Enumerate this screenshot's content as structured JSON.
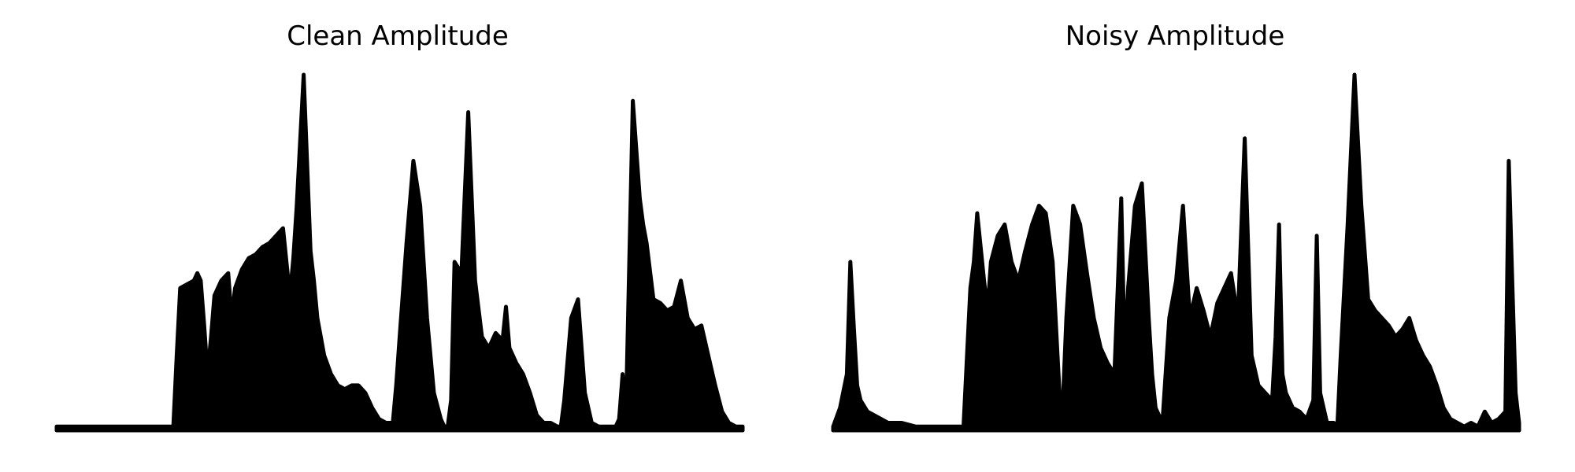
{
  "figure": {
    "background": "#ffffff",
    "line_color": "#000000"
  },
  "chart_data": [
    {
      "type": "area",
      "title": "Clean Amplitude",
      "xlabel": "",
      "ylabel": "",
      "axes_visible": false,
      "grid": false,
      "color": "#000000",
      "x": [
        0,
        5,
        10,
        15,
        17,
        17.5,
        18,
        19,
        20,
        20.5,
        21,
        21.5,
        22,
        22.5,
        23,
        24,
        25,
        25.5,
        26,
        27,
        28,
        29,
        30,
        31,
        32,
        33,
        34,
        34.5,
        35,
        36,
        37,
        37.5,
        38,
        39,
        40,
        41,
        42,
        43,
        44,
        45,
        46,
        47,
        48,
        49,
        49.5,
        50,
        51,
        52,
        53,
        54,
        55,
        56,
        56.5,
        57,
        57.5,
        58,
        59,
        60,
        61,
        62,
        63,
        64,
        65,
        65.5,
        66,
        67,
        68,
        69,
        70,
        71,
        72,
        73,
        73.5,
        74,
        75,
        76,
        77,
        78,
        79,
        80,
        81,
        81.5,
        82,
        82.5,
        83,
        84,
        85,
        85.5,
        86,
        87,
        88,
        89,
        90,
        91,
        92,
        93,
        94,
        95,
        96,
        97,
        98,
        99,
        100
      ],
      "values": [
        0.01,
        0.01,
        0.01,
        0.01,
        0.01,
        0.2,
        0.38,
        0.39,
        0.4,
        0.42,
        0.4,
        0.28,
        0.15,
        0.25,
        0.36,
        0.4,
        0.42,
        0.3,
        0.38,
        0.43,
        0.46,
        0.47,
        0.49,
        0.5,
        0.52,
        0.54,
        0.36,
        0.46,
        0.6,
        0.95,
        0.48,
        0.4,
        0.3,
        0.2,
        0.15,
        0.12,
        0.11,
        0.12,
        0.12,
        0.1,
        0.06,
        0.03,
        0.02,
        0.02,
        0.12,
        0.25,
        0.5,
        0.72,
        0.6,
        0.3,
        0.1,
        0.03,
        0.01,
        0.01,
        0.08,
        0.45,
        0.42,
        0.85,
        0.4,
        0.25,
        0.22,
        0.26,
        0.24,
        0.33,
        0.22,
        0.18,
        0.15,
        0.1,
        0.04,
        0.02,
        0.02,
        0.01,
        0.01,
        0.08,
        0.3,
        0.35,
        0.1,
        0.02,
        0.01,
        0.01,
        0.01,
        0.01,
        0.03,
        0.15,
        0.05,
        0.88,
        0.62,
        0.55,
        0.5,
        0.35,
        0.34,
        0.32,
        0.33,
        0.4,
        0.3,
        0.27,
        0.28,
        0.2,
        0.12,
        0.05,
        0.02,
        0.01,
        0.01
      ]
    },
    {
      "type": "area",
      "title": "Noisy Amplitude",
      "xlabel": "",
      "ylabel": "",
      "axes_visible": false,
      "grid": false,
      "color": "#000000",
      "x": [
        0,
        1,
        2,
        2.5,
        3,
        3.5,
        4,
        5,
        6,
        7,
        8,
        10,
        12,
        14,
        17,
        19,
        20,
        20.5,
        21,
        22,
        22.5,
        23,
        24,
        25,
        26,
        27,
        28,
        29,
        30,
        31,
        32,
        33,
        33.5,
        34,
        35,
        36,
        37,
        38,
        39,
        40,
        41,
        42,
        42.5,
        43,
        44,
        45,
        46,
        46.5,
        47,
        48,
        49,
        50,
        51,
        52,
        53,
        54,
        55,
        56,
        57,
        58,
        59,
        60,
        61,
        62,
        63,
        64,
        64.5,
        65,
        65.5,
        66,
        67,
        68,
        69,
        70,
        70.5,
        71,
        72,
        73,
        73.5,
        74,
        75,
        76,
        77,
        78,
        79,
        80,
        81,
        82,
        83,
        84,
        85,
        86,
        87,
        88,
        89,
        90,
        91,
        92,
        93,
        94,
        95,
        96,
        97,
        98,
        98.5,
        99,
        99.5,
        100
      ],
      "values": [
        0.01,
        0.06,
        0.15,
        0.45,
        0.28,
        0.12,
        0.08,
        0.05,
        0.04,
        0.03,
        0.02,
        0.02,
        0.01,
        0.01,
        0.01,
        0.01,
        0.38,
        0.45,
        0.58,
        0.4,
        0.32,
        0.45,
        0.52,
        0.55,
        0.45,
        0.4,
        0.48,
        0.55,
        0.6,
        0.58,
        0.45,
        0.1,
        0.08,
        0.3,
        0.6,
        0.55,
        0.42,
        0.3,
        0.22,
        0.18,
        0.15,
        0.62,
        0.2,
        0.38,
        0.6,
        0.66,
        0.3,
        0.15,
        0.06,
        0.02,
        0.3,
        0.4,
        0.6,
        0.3,
        0.38,
        0.32,
        0.25,
        0.34,
        0.38,
        0.42,
        0.3,
        0.78,
        0.2,
        0.12,
        0.1,
        0.08,
        0.25,
        0.55,
        0.15,
        0.1,
        0.06,
        0.05,
        0.03,
        0.08,
        0.52,
        0.1,
        0.02,
        0.02,
        0.01,
        0.2,
        0.55,
        0.95,
        0.6,
        0.35,
        0.32,
        0.3,
        0.28,
        0.25,
        0.27,
        0.3,
        0.24,
        0.2,
        0.17,
        0.12,
        0.06,
        0.03,
        0.02,
        0.01,
        0.02,
        0.01,
        0.05,
        0.02,
        0.03,
        0.05,
        0.72,
        0.4,
        0.1,
        0.02
      ]
    }
  ]
}
